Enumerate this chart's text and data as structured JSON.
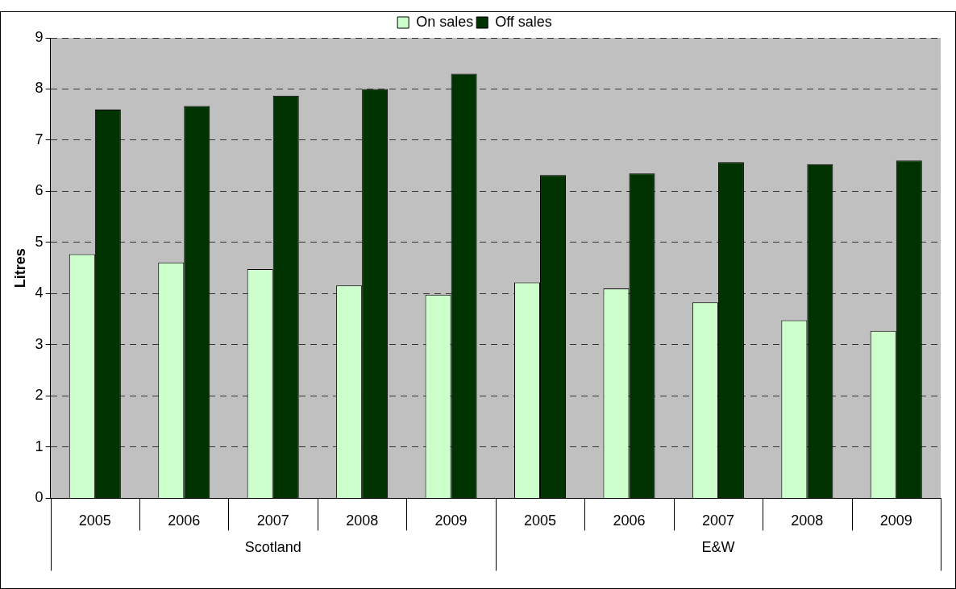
{
  "chart_data": {
    "type": "bar",
    "ylabel": "Litres",
    "categories": [
      "2005",
      "2006",
      "2007",
      "2008",
      "2009",
      "2005",
      "2006",
      "2007",
      "2008",
      "2009"
    ],
    "series": [
      {
        "name": "On sales",
        "color": "#ccffcc",
        "values": [
          4.77,
          4.61,
          4.48,
          4.16,
          3.98,
          4.22,
          4.1,
          3.83,
          3.48,
          3.27
        ]
      },
      {
        "name": "Off sales",
        "color": "#003300",
        "values": [
          7.6,
          7.67,
          7.87,
          8.0,
          8.3,
          6.32,
          6.35,
          6.57,
          6.53,
          6.6
        ]
      }
    ],
    "annotations": [
      "Scotland",
      "E&W"
    ],
    "ylim": [
      0,
      9
    ],
    "yticks": [
      0,
      1,
      2,
      3,
      4,
      5,
      6,
      7,
      8,
      9
    ],
    "grid": "y",
    "legend": "top"
  }
}
